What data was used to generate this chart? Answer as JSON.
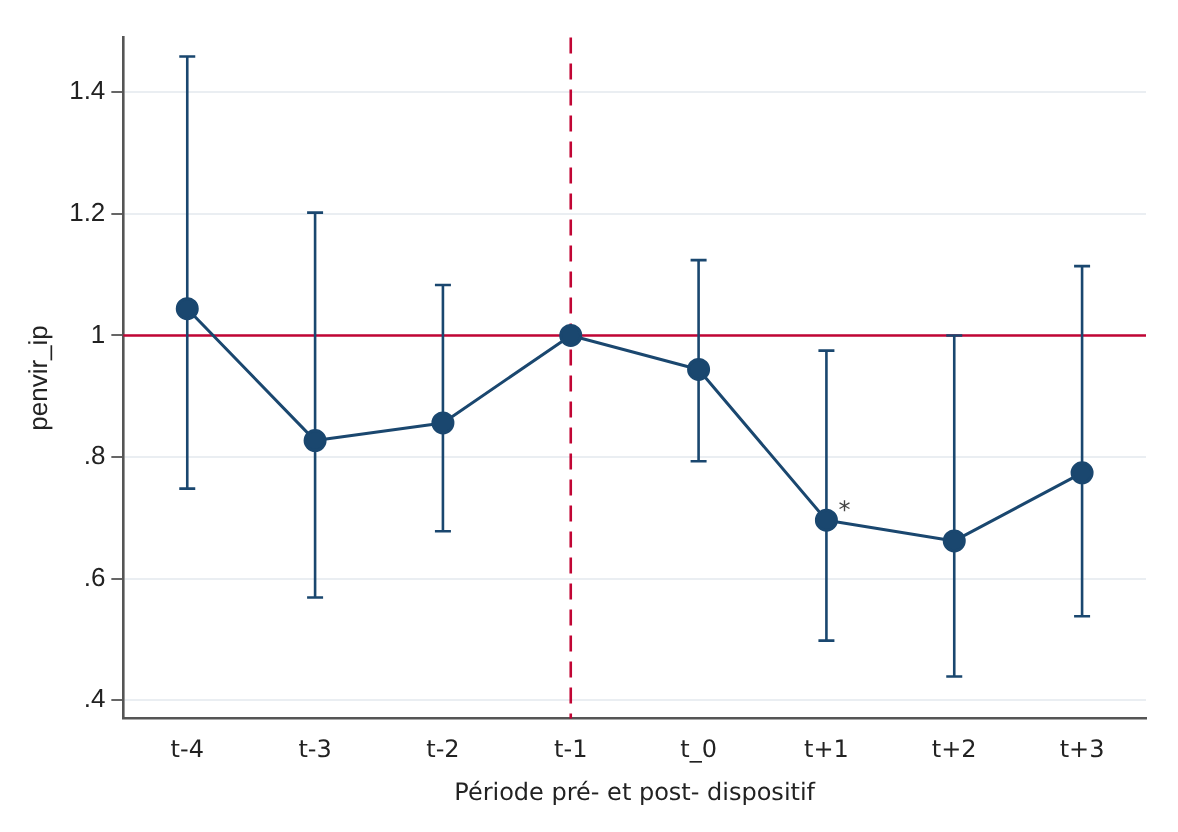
{
  "chart_data": {
    "type": "line",
    "xlabel": "Période pré- et post- dispositif",
    "ylabel": "penvir_ip",
    "categories": [
      "t-4",
      "t-3",
      "t-2",
      "t-1",
      "t_0",
      "t+1",
      "t+2",
      "t+3"
    ],
    "series": [
      {
        "color": "#1a476f",
        "values": [
          1.044,
          0.827,
          0.856,
          1.0,
          0.944,
          0.696,
          0.662,
          0.774
        ],
        "errors": [
          [
            0.748,
            1.459
          ],
          [
            0.569,
            1.202
          ],
          [
            0.678,
            1.083
          ],
          null,
          [
            0.793,
            1.124
          ],
          [
            0.498,
            0.975
          ],
          [
            0.439,
            1.0
          ],
          [
            0.538,
            1.114
          ]
        ]
      }
    ],
    "ylim": [
      0.37,
      1.49
    ],
    "yticks": [
      {
        "value": 0.4,
        "label": ".4"
      },
      {
        "value": 0.6,
        "label": ".6"
      },
      {
        "value": 0.8,
        "label": ".8"
      },
      1,
      {
        "value": 1.2,
        "label": "1.2"
      },
      {
        "value": 1.4,
        "label": "1.4"
      }
    ],
    "grid": "y",
    "marker": "circle",
    "line_style": "solid",
    "ref_lines": [
      {
        "axis": "y",
        "value": 1,
        "color": "#c10534",
        "line_style": "solid"
      },
      {
        "axis": "x",
        "value": "t-1",
        "color": "#c10534",
        "line_style": "dashed"
      }
    ],
    "annotations": [
      {
        "text": "*",
        "x": "t+1",
        "y": 0.696
      }
    ]
  }
}
